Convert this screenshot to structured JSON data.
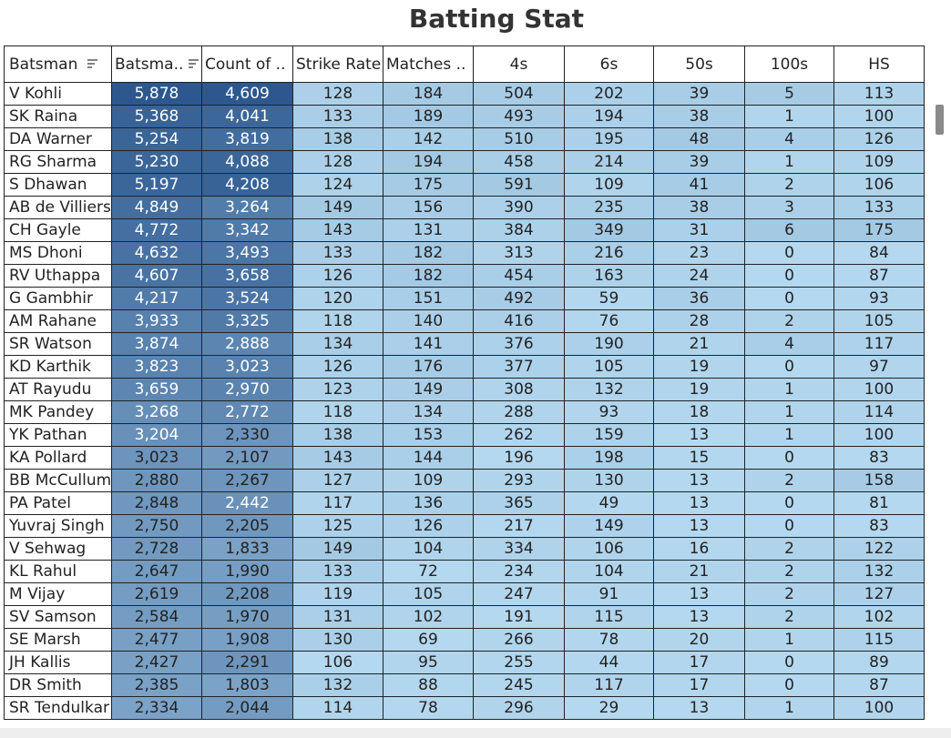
{
  "title": "Batting Stat",
  "table": {
    "columns": [
      "Batsman",
      "Batsma..",
      "Count of ..",
      "Strike Rate",
      "Matches ..",
      "4s",
      "6s",
      "50s",
      "100s",
      "HS"
    ],
    "rows": [
      [
        "V Kohli",
        "5,878",
        "4,609",
        "128",
        "184",
        "504",
        "202",
        "39",
        "5",
        "113"
      ],
      [
        "SK Raina",
        "5,368",
        "4,041",
        "133",
        "189",
        "493",
        "194",
        "38",
        "1",
        "100"
      ],
      [
        "DA Warner",
        "5,254",
        "3,819",
        "138",
        "142",
        "510",
        "195",
        "48",
        "4",
        "126"
      ],
      [
        "RG Sharma",
        "5,230",
        "4,088",
        "128",
        "194",
        "458",
        "214",
        "39",
        "1",
        "109"
      ],
      [
        "S Dhawan",
        "5,197",
        "4,208",
        "124",
        "175",
        "591",
        "109",
        "41",
        "2",
        "106"
      ],
      [
        "AB de Villiers",
        "4,849",
        "3,264",
        "149",
        "156",
        "390",
        "235",
        "38",
        "3",
        "133"
      ],
      [
        "CH Gayle",
        "4,772",
        "3,342",
        "143",
        "131",
        "384",
        "349",
        "31",
        "6",
        "175"
      ],
      [
        "MS Dhoni",
        "4,632",
        "3,493",
        "133",
        "182",
        "313",
        "216",
        "23",
        "0",
        "84"
      ],
      [
        "RV Uthappa",
        "4,607",
        "3,658",
        "126",
        "182",
        "454",
        "163",
        "24",
        "0",
        "87"
      ],
      [
        "G Gambhir",
        "4,217",
        "3,524",
        "120",
        "151",
        "492",
        "59",
        "36",
        "0",
        "93"
      ],
      [
        "AM Rahane",
        "3,933",
        "3,325",
        "118",
        "140",
        "416",
        "76",
        "28",
        "2",
        "105"
      ],
      [
        "SR Watson",
        "3,874",
        "2,888",
        "134",
        "141",
        "376",
        "190",
        "21",
        "4",
        "117"
      ],
      [
        "KD Karthik",
        "3,823",
        "3,023",
        "126",
        "176",
        "377",
        "105",
        "19",
        "0",
        "97"
      ],
      [
        "AT Rayudu",
        "3,659",
        "2,970",
        "123",
        "149",
        "308",
        "132",
        "19",
        "1",
        "100"
      ],
      [
        "MK Pandey",
        "3,268",
        "2,772",
        "118",
        "134",
        "288",
        "93",
        "18",
        "1",
        "114"
      ],
      [
        "YK Pathan",
        "3,204",
        "2,330",
        "138",
        "153",
        "262",
        "159",
        "13",
        "1",
        "100"
      ],
      [
        "KA Pollard",
        "3,023",
        "2,107",
        "143",
        "144",
        "196",
        "198",
        "15",
        "0",
        "83"
      ],
      [
        "BB McCullum",
        "2,880",
        "2,267",
        "127",
        "109",
        "293",
        "130",
        "13",
        "2",
        "158"
      ],
      [
        "PA Patel",
        "2,848",
        "2,442",
        "117",
        "136",
        "365",
        "49",
        "13",
        "0",
        "81"
      ],
      [
        "Yuvraj Singh",
        "2,750",
        "2,205",
        "125",
        "126",
        "217",
        "149",
        "13",
        "0",
        "83"
      ],
      [
        "V Sehwag",
        "2,728",
        "1,833",
        "149",
        "104",
        "334",
        "106",
        "16",
        "2",
        "122"
      ],
      [
        "KL Rahul",
        "2,647",
        "1,990",
        "133",
        "72",
        "234",
        "104",
        "21",
        "2",
        "132"
      ],
      [
        "M Vijay",
        "2,619",
        "2,208",
        "119",
        "105",
        "247",
        "91",
        "13",
        "2",
        "127"
      ],
      [
        "SV Samson",
        "2,584",
        "1,970",
        "131",
        "102",
        "191",
        "115",
        "13",
        "2",
        "102"
      ],
      [
        "SE Marsh",
        "2,477",
        "1,908",
        "130",
        "69",
        "266",
        "78",
        "20",
        "1",
        "115"
      ],
      [
        "JH Kallis",
        "2,427",
        "2,291",
        "106",
        "95",
        "255",
        "44",
        "17",
        "0",
        "89"
      ],
      [
        "DR Smith",
        "2,385",
        "1,803",
        "132",
        "88",
        "245",
        "117",
        "17",
        "0",
        "87"
      ],
      [
        "SR Tendulkar",
        "2,334",
        "2,044",
        "114",
        "78",
        "296",
        "29",
        "13",
        "1",
        "100"
      ]
    ]
  }
}
